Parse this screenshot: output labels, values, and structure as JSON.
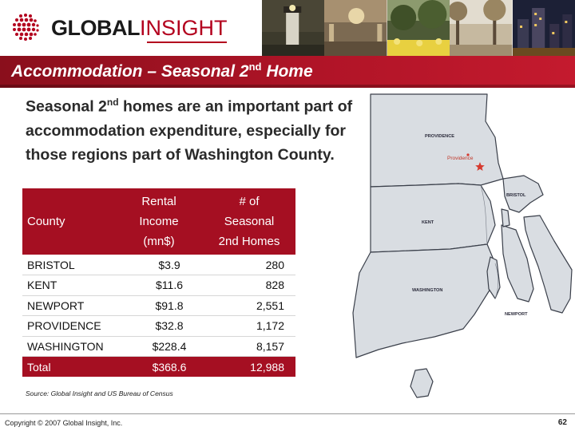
{
  "header": {
    "logo_global": "GLOBAL",
    "logo_insight": "INSIGHT"
  },
  "title": {
    "main": "Accommodation – Seasonal 2",
    "sup": "nd",
    "tail": " Home"
  },
  "bullet": {
    "part1": "Seasonal 2",
    "sup": "nd",
    "part2": " homes are an important part of accommodation expenditure, especially for those regions part of Washington County."
  },
  "table": {
    "headers": {
      "county": "County",
      "income_line1": "Rental",
      "income_line2": "Income",
      "income_line3": "(mn$)",
      "homes_line1": "# of",
      "homes_line2": "Seasonal",
      "homes_line3": "2nd Homes"
    },
    "rows": [
      {
        "county": "BRISTOL",
        "income": "$3.9",
        "homes": "280"
      },
      {
        "county": "KENT",
        "income": "$11.6",
        "homes": "828"
      },
      {
        "county": "NEWPORT",
        "income": "$91.8",
        "homes": "2,551"
      },
      {
        "county": "PROVIDENCE",
        "income": "$32.8",
        "homes": "1,172"
      },
      {
        "county": "WASHINGTON",
        "income": "$228.4",
        "homes": "8,157"
      }
    ],
    "total": {
      "county": "Total",
      "income": "$368.6",
      "homes": "12,988"
    }
  },
  "source": "Source: Global Insight and US Bureau of Census",
  "map": {
    "labels": {
      "providence": "PROVIDENCE",
      "providence_city": "Providence",
      "bristol": "BRISTOL",
      "kent": "KENT",
      "washington": "WASHINGTON",
      "newport": "NEWPORT"
    }
  },
  "footer": {
    "copyright": "Copyright © 2007 Global Insight, Inc.",
    "page": "62"
  },
  "colors": {
    "brand_red": "#a50f22",
    "map_fill": "#d9dde2",
    "map_stroke": "#3a3f4a",
    "city_star": "#d63a2f"
  }
}
